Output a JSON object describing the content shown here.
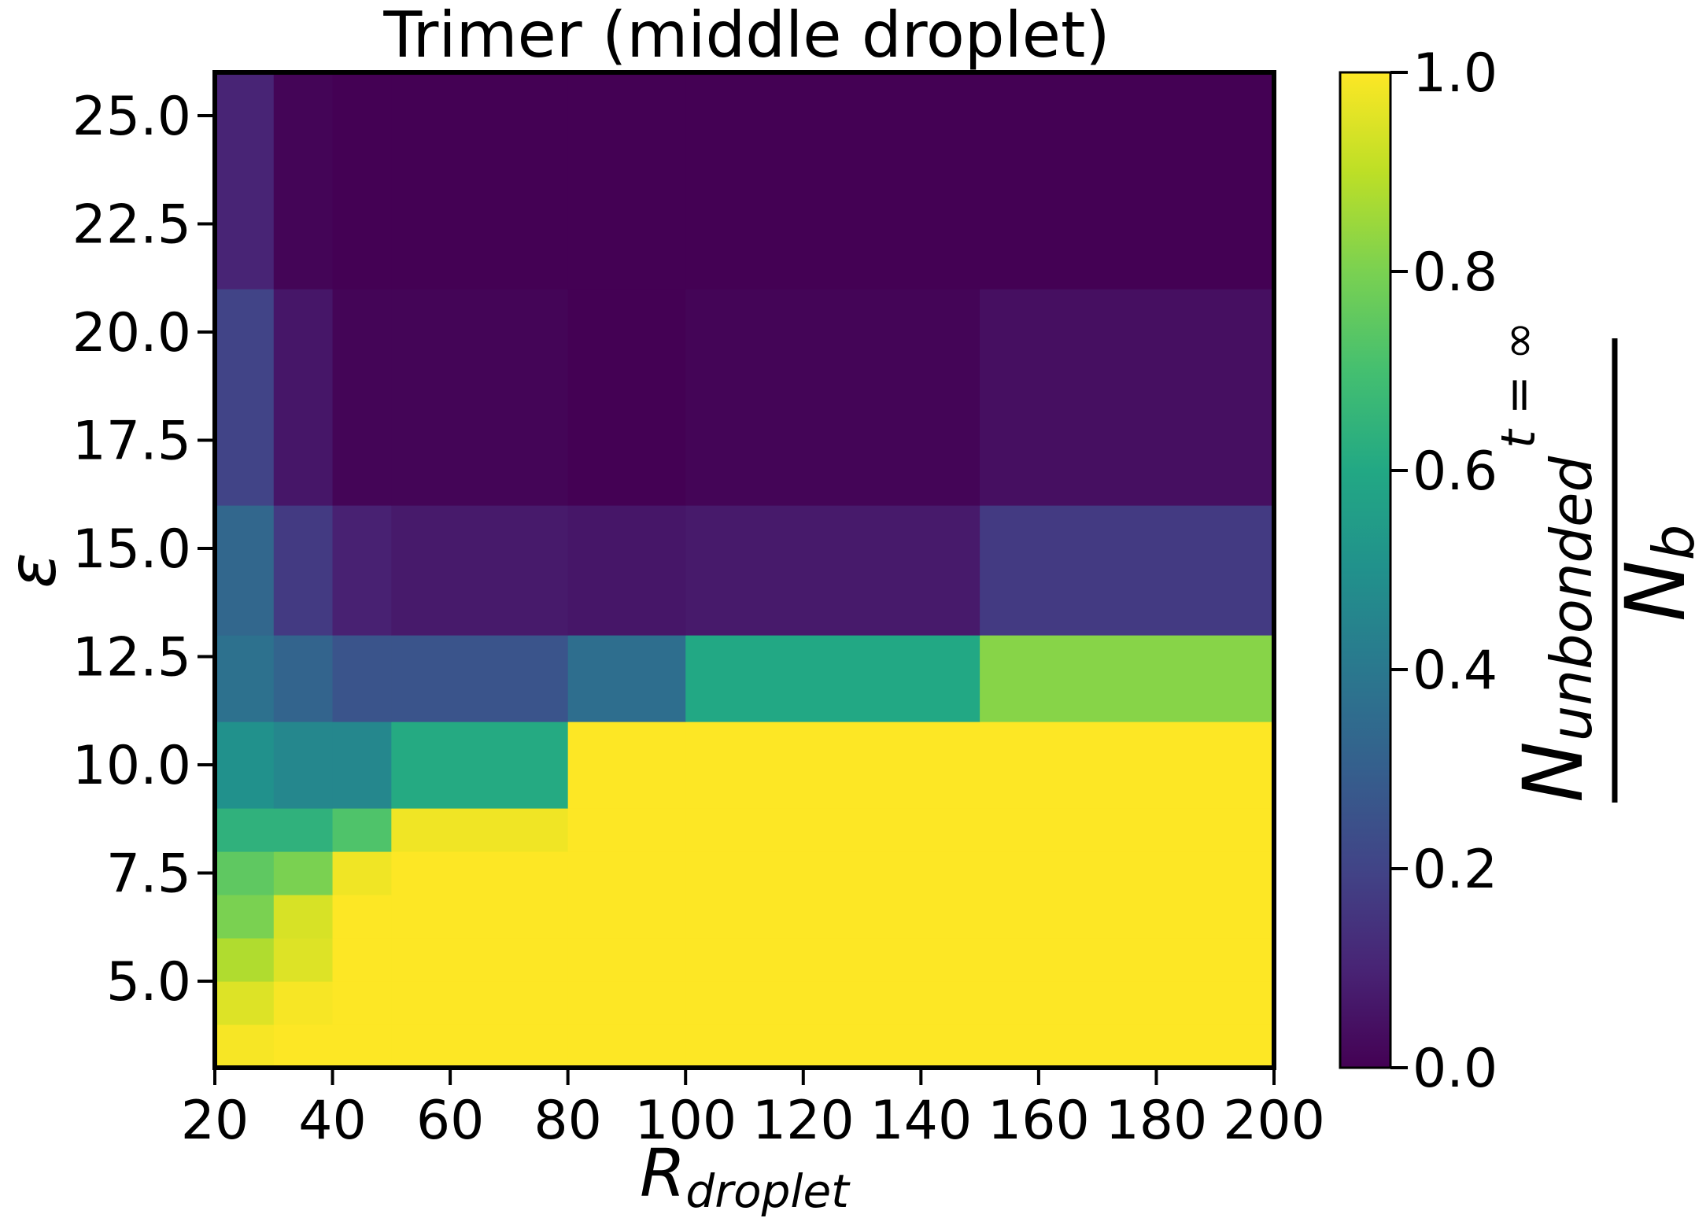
{
  "chart_data": {
    "type": "heatmap",
    "title": "Trimer (middle droplet)",
    "xlabel": {
      "main": "R",
      "sub": "droplet"
    },
    "ylabel": "ε",
    "x_edges": [
      20,
      30,
      40,
      50,
      80,
      100,
      150,
      200
    ],
    "y_edges": [
      3,
      4,
      5,
      6,
      7,
      8,
      9,
      11,
      13,
      16,
      21,
      26
    ],
    "xlim": [
      20,
      200
    ],
    "ylim": [
      3,
      26
    ],
    "x_ticks": [
      "20",
      "40",
      "60",
      "80",
      "100",
      "120",
      "140",
      "160",
      "180",
      "200"
    ],
    "y_ticks": [
      "5.0",
      "7.5",
      "10.0",
      "12.5",
      "15.0",
      "17.5",
      "20.0",
      "22.5",
      "25.0"
    ],
    "values": [
      [
        0.99,
        1.0,
        1.0,
        1.0,
        1.0,
        1.0,
        1.0
      ],
      [
        0.95,
        0.99,
        1.0,
        1.0,
        1.0,
        1.0,
        1.0
      ],
      [
        0.88,
        0.95,
        1.0,
        1.0,
        1.0,
        1.0,
        1.0
      ],
      [
        0.8,
        0.94,
        1.0,
        1.0,
        1.0,
        1.0,
        1.0
      ],
      [
        0.75,
        0.8,
        0.98,
        1.0,
        1.0,
        1.0,
        1.0
      ],
      [
        0.64,
        0.64,
        0.72,
        0.98,
        1.0,
        1.0,
        1.0
      ],
      [
        0.5,
        0.46,
        0.46,
        0.61,
        1.0,
        1.0,
        1.0
      ],
      [
        0.37,
        0.32,
        0.26,
        0.26,
        0.36,
        0.6,
        0.82
      ],
      [
        0.33,
        0.17,
        0.09,
        0.07,
        0.06,
        0.07,
        0.17
      ],
      [
        0.2,
        0.06,
        0.01,
        0.01,
        0.0,
        0.01,
        0.04
      ],
      [
        0.1,
        0.01,
        0.0,
        0.0,
        0.0,
        0.0,
        0.0
      ]
    ],
    "colormap": "viridis",
    "colorbar": {
      "range": [
        0.0,
        1.0
      ],
      "ticks": [
        "0.0",
        "0.2",
        "0.4",
        "0.6",
        "0.8",
        "1.0"
      ],
      "label": {
        "numerator": "N",
        "numerator_sub": "unbonded",
        "numerator_sup": "t = ∞",
        "denominator": "N",
        "denominator_sub": "b"
      }
    },
    "grid": false
  }
}
